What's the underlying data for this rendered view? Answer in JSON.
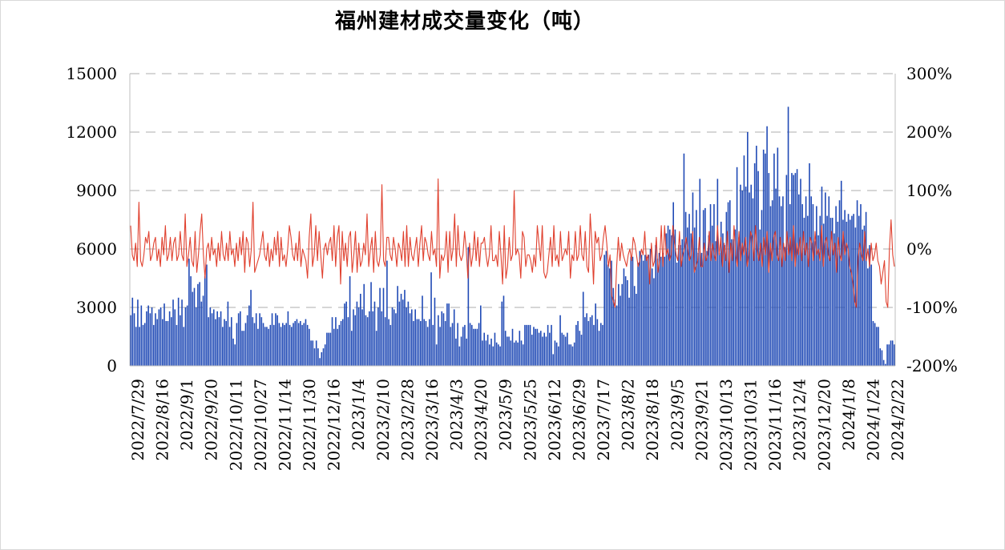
{
  "chart_data": {
    "type": "bar+line",
    "title": "福州建材成交量变化（吨）",
    "xlabel": "",
    "ylabel": "",
    "ylim": [
      0,
      15000
    ],
    "y2lim": [
      -200,
      300
    ],
    "yticks": [
      "0",
      "3000",
      "6000",
      "9000",
      "12000",
      "15000"
    ],
    "y2ticks": [
      "-200%",
      "-100%",
      "0%",
      "100%",
      "200%",
      "300%"
    ],
    "grid": "horizontal-dashed",
    "legend": "none",
    "colors": {
      "bar": "#1f49b5",
      "line": "#e0412f",
      "grid": "#c8c8c8",
      "axis": "#bfbfbf"
    },
    "xticks": [
      "2022/7/29",
      "2022/8/16",
      "2022/9/1",
      "2022/9/20",
      "2022/10/11",
      "2022/10/27",
      "2022/11/14",
      "2022/11/30",
      "2022/12/16",
      "2023/1/4",
      "2023/2/10",
      "2023/2/28",
      "2023/3/16",
      "2023/4/3",
      "2023/4/20",
      "2023/5/9",
      "2023/5/25",
      "2023/6/12",
      "2023/6/29",
      "2023/7/17",
      "2023/8/2",
      "2023/8/18",
      "2023/9/5",
      "2023/9/21",
      "2023/10/13",
      "2023/10/31",
      "2023/11/16",
      "2023/12/4",
      "2023/12/20",
      "2024/1/8",
      "2024/1/24",
      "2024/2/22"
    ],
    "series": [
      {
        "type": "bar",
        "values": [
          2600,
          3500,
          2700,
          2000,
          3400,
          2000,
          3100,
          2100,
          2200,
          2800,
          3100,
          2700,
          3000,
          2100,
          2700,
          2400,
          2900,
          3000,
          2400,
          3200,
          2300,
          2300,
          2800,
          2500,
          3400,
          2900,
          2100,
          3500,
          2600,
          3400,
          2000,
          3000,
          3100,
          5500,
          4600,
          3800,
          4000,
          3000,
          4200,
          4300,
          3300,
          3600,
          4600,
          5200,
          2500,
          3000,
          2700,
          2900,
          2400,
          2800,
          2500,
          2800,
          2000,
          2400,
          2300,
          3300,
          2000,
          2500,
          1400,
          1100,
          2200,
          2700,
          2800,
          1800,
          1800,
          2200,
          2600,
          3100,
          3900,
          2500,
          2200,
          2700,
          1900,
          2700,
          2500,
          2200,
          2000,
          2000,
          1900,
          2100,
          2700,
          2100,
          2700,
          2600,
          2200,
          2000,
          2200,
          2100,
          2200,
          2800,
          2100,
          2000,
          2200,
          2300,
          2400,
          2200,
          2300,
          2100,
          2200,
          2400,
          2100,
          1900,
          1300,
          1300,
          900,
          1300,
          900,
          400,
          700,
          900,
          1100,
          1700,
          1700,
          1700,
          2500,
          1900,
          2500,
          1900,
          2100,
          2300,
          2400,
          3200,
          3300,
          2500,
          4600,
          1800,
          2900,
          2600,
          3300,
          3000,
          3700,
          2900,
          4200,
          2600,
          2500,
          2800,
          4300,
          2800,
          3300,
          1800,
          3000,
          4000,
          2800,
          4000,
          2500,
          5400,
          2400,
          2100,
          3000,
          2900,
          2700,
          4100,
          3300,
          3700,
          3400,
          3900,
          3000,
          3300,
          2700,
          2900,
          2300,
          2900,
          2400,
          2400,
          2300,
          3600,
          2400,
          2300,
          2000,
          2400,
          4800,
          2100,
          3500,
          1100,
          2600,
          2000,
          2800,
          2700,
          2300,
          3200,
          3200,
          2000,
          2200,
          2900,
          1400,
          2200,
          1000,
          1500,
          2000,
          2100,
          1400,
          6100,
          2200,
          2100,
          1900,
          1900,
          1900,
          2200,
          3100,
          1300,
          1700,
          1300,
          1600,
          1100,
          1400,
          1000,
          1700,
          1200,
          1100,
          1000,
          3300,
          3600,
          1800,
          1500,
          1500,
          1300,
          1900,
          1200,
          1300,
          1200,
          1800,
          1300,
          1100,
          2100,
          2100,
          2100,
          2100,
          1600,
          2000,
          1900,
          1900,
          1700,
          1800,
          1500,
          1700,
          1500,
          2100,
          1700,
          2100,
          600,
          1300,
          1200,
          1000,
          2600,
          1700,
          1600,
          1500,
          1700,
          1100,
          1100,
          1000,
          1200,
          2100,
          2300,
          1800,
          1600,
          3800,
          2500,
          2700,
          2300,
          2500,
          2600,
          2100,
          3200,
          2400,
          1800,
          2200,
          2100,
          5700,
          5900,
          5200,
          5000,
          5400,
          4000,
          3400,
          3100,
          4200,
          3600,
          4200,
          5000,
          4600,
          4400,
          3500,
          5600,
          5600,
          4100,
          3700,
          5300,
          5900,
          5700,
          5400,
          5700,
          5600,
          5700,
          6000,
          5000,
          4500,
          6200,
          5500,
          5800,
          5600,
          5800,
          5600,
          6800,
          7200,
          7000,
          6700,
          8400,
          7000,
          5300,
          6200,
          6200,
          6500,
          10900,
          7900,
          7100,
          7800,
          6800,
          8900,
          7100,
          8000,
          5800,
          9600,
          5800,
          8000,
          8100,
          5900,
          6700,
          8300,
          7200,
          8300,
          6400,
          9600,
          5800,
          7400,
          6800,
          6200,
          7900,
          8400,
          8500,
          6500,
          6500,
          7000,
          10200,
          6600,
          9300,
          9000,
          10800,
          9200,
          12000,
          8900,
          9300,
          8600,
          10400,
          11300,
          10000,
          7000,
          8000,
          11100,
          10900,
          12300,
          9900,
          8200,
          8500,
          10900,
          9100,
          11200,
          8700,
          8200,
          8700,
          6100,
          9800,
          13300,
          8300,
          9900,
          9800,
          9900,
          10100,
          8800,
          9600,
          8300,
          7600,
          8700,
          7700,
          10400,
          8700,
          8300,
          6400,
          8200,
          6700,
          7700,
          9200,
          7300,
          8900,
          7700,
          8700,
          7600,
          7600,
          6800,
          8200,
          7400,
          8500,
          9500,
          7500,
          8000,
          7400,
          7800,
          7500,
          7700,
          7800,
          7100,
          8500,
          7700,
          8300,
          7000,
          7200,
          7900,
          5000,
          6200,
          5200,
          2300,
          2200,
          2000,
          2000,
          900,
          800,
          300,
          100,
          1100,
          1100,
          1300,
          1300,
          1100
        ]
      },
      {
        "type": "line",
        "axis": "right",
        "values": [
          40,
          -10,
          -20,
          10,
          -30,
          80,
          -20,
          -30,
          -10,
          20,
          10,
          30,
          -20,
          -10,
          10,
          20,
          -20,
          0,
          -30,
          20,
          -10,
          40,
          -20,
          -10,
          20,
          -20,
          10,
          20,
          -20,
          -10,
          30,
          -10,
          -20,
          60,
          -30,
          -10,
          20,
          -20,
          -30,
          30,
          -40,
          -10,
          30,
          60,
          -10,
          -50,
          0,
          10,
          -20,
          20,
          -10,
          0,
          -30,
          10,
          -20,
          30,
          -10,
          -20,
          10,
          -20,
          30,
          -10,
          0,
          -30,
          10,
          -20,
          20,
          -10,
          30,
          -40,
          20,
          10,
          -30,
          0,
          80,
          -40,
          -30,
          -20,
          -10,
          10,
          30,
          -10,
          -20,
          10,
          -30,
          0,
          -20,
          20,
          -10,
          30,
          -30,
          20,
          -20,
          -10,
          -30,
          0,
          40,
          20,
          -10,
          -20,
          10,
          -20,
          30,
          -30,
          0,
          -10,
          -20,
          -50,
          20,
          60,
          -30,
          -10,
          40,
          -20,
          30,
          -10,
          -50,
          0,
          10,
          -10,
          10,
          20,
          -20,
          40,
          -30,
          20,
          40,
          -60,
          30,
          -20,
          10,
          -30,
          20,
          30,
          -40,
          -10,
          30,
          -40,
          10,
          -30,
          -20,
          10,
          -10,
          60,
          -30,
          0,
          20,
          -40,
          30,
          -20,
          -30,
          -10,
          110,
          -20,
          -30,
          20,
          20,
          -10,
          -20,
          20,
          0,
          -30,
          10,
          0,
          -20,
          30,
          -30,
          40,
          -30,
          20,
          -10,
          -20,
          0,
          20,
          -30,
          10,
          40,
          -20,
          20,
          10,
          -10,
          -20,
          30,
          -10,
          0,
          -30,
          120,
          -50,
          -10,
          -20,
          -10,
          30,
          -40,
          30,
          -20,
          0,
          60,
          -30,
          40,
          -10,
          -20,
          -10,
          30,
          0,
          -50,
          10,
          -30,
          -10,
          30,
          -20,
          20,
          -30,
          10,
          10,
          20,
          -10,
          -30,
          -10,
          40,
          -20,
          -20,
          -10,
          -30,
          30,
          -10,
          -60,
          40,
          -50,
          -30,
          20,
          -20,
          -10,
          100,
          -10,
          0,
          -10,
          -50,
          30,
          20,
          -30,
          -10,
          -10,
          -20,
          -40,
          -10,
          -30,
          40,
          10,
          -20,
          40,
          -40,
          -50,
          -40,
          -10,
          20,
          -30,
          40,
          -20,
          -10,
          -30,
          30,
          -20,
          -10,
          0,
          -10,
          30,
          -50,
          -10,
          -20,
          30,
          -20,
          -10,
          40,
          -10,
          -20,
          30,
          -30,
          -40,
          60,
          10,
          -60,
          30,
          10,
          20,
          -20,
          -10,
          20,
          40,
          10,
          -30,
          -10,
          -80,
          -90,
          -100,
          -30,
          20,
          -20,
          10,
          -10,
          -20,
          -30,
          -10,
          0,
          -20,
          20,
          10,
          -10,
          -30,
          -20,
          0,
          -10,
          30,
          -20,
          -10,
          -60,
          10,
          -30,
          -20,
          20,
          -40,
          -20,
          40,
          -30,
          40,
          -10,
          0,
          -20,
          -10,
          40,
          10,
          -10,
          -20,
          30,
          -30,
          -10,
          0,
          20,
          0,
          -20,
          -10,
          30,
          -40,
          -30,
          -20,
          20,
          -30,
          -30,
          10,
          -20,
          -10,
          30,
          -20,
          10,
          -10,
          -20,
          40,
          -10,
          20,
          -30,
          10,
          -20,
          30,
          -40,
          10,
          -20,
          40,
          -10,
          -30,
          30,
          -20,
          10,
          -10,
          20,
          -30,
          -10,
          30,
          20,
          -20,
          40,
          0,
          -20,
          10,
          -30,
          20,
          -10,
          30,
          -40,
          10,
          -20,
          20,
          30,
          -10,
          -20,
          20,
          -30,
          10,
          -20,
          30,
          -10,
          20,
          -20,
          40,
          -30,
          10,
          -10,
          20,
          -20,
          30,
          -10,
          10,
          -30,
          20,
          10,
          -20,
          30,
          -10,
          0,
          -20,
          40,
          -30,
          10,
          20,
          -10,
          -20,
          30,
          -10,
          10,
          -40,
          20,
          -10,
          -20,
          30,
          -10,
          10,
          0,
          -30,
          -40,
          -60,
          -90,
          -100,
          -20,
          10,
          -10,
          -20,
          30,
          -20,
          0,
          -30,
          10,
          -20,
          -10,
          10,
          -20,
          -30,
          -60,
          -40,
          -20,
          -90,
          -100,
          0,
          50,
          -10,
          -30
        ]
      }
    ]
  }
}
